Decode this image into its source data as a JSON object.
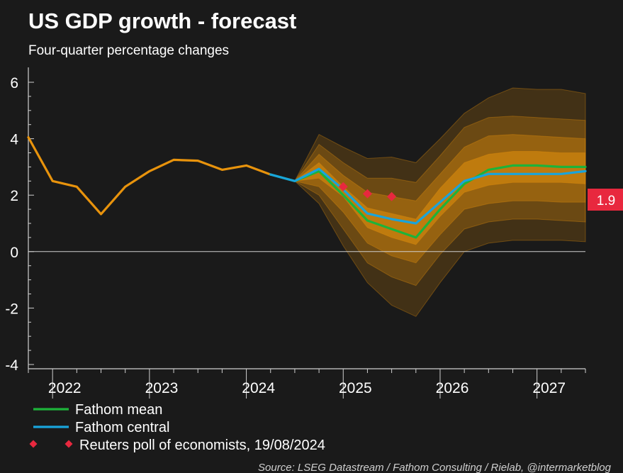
{
  "title": "US GDP growth - forecast",
  "subtitle": "Four-quarter percentage changes",
  "source": "Source: LSEG Datastream / Fathom Consulting / Rielab, @intermarketblog",
  "colors": {
    "background": "#1a1a1a",
    "history": "#e8930c",
    "fathom_mean": "#1db33a",
    "fathom_central": "#19a4db",
    "reuters_poll": "#e8283e",
    "fan": "#e8930c",
    "last_value_badge": "#e8283e"
  },
  "last_value_label": "1.9",
  "legend": [
    {
      "label": "Fathom mean",
      "marker": "line",
      "color": "#1db33a"
    },
    {
      "label": "Fathom central",
      "marker": "line",
      "color": "#19a4db"
    },
    {
      "label": "Reuters poll of economists, 19/08/2024",
      "marker": "diamond",
      "color": "#e8283e"
    }
  ],
  "chart_data": {
    "type": "line",
    "title": "US GDP growth - forecast",
    "subtitle": "Four-quarter percentage changes",
    "xlabel": "",
    "ylabel": "",
    "ylim": [
      -4,
      6
    ],
    "xlim": [
      2021.75,
      2027.5
    ],
    "ytick_labels": [
      "6",
      "4",
      "2",
      "0",
      "-2",
      "-4"
    ],
    "yticks": [
      6,
      4,
      2,
      0,
      -2,
      -4
    ],
    "year_labels": [
      "2022",
      "2023",
      "2024",
      "2025",
      "2026",
      "2027"
    ],
    "year_centers": [
      2022.125,
      2023.125,
      2024.125,
      2025.125,
      2026.125,
      2027.125
    ],
    "grid": false,
    "zero_line": true,
    "legend_position": "bottom-left",
    "series": [
      {
        "name": "History",
        "in_legend": false,
        "x": [
          2021.75,
          2022.0,
          2022.25,
          2022.5,
          2022.75,
          2023.0,
          2023.25,
          2023.5,
          2023.75,
          2024.0,
          2024.25
        ],
        "values": [
          4.05,
          2.5,
          2.3,
          1.33,
          2.3,
          2.85,
          3.25,
          3.22,
          2.9,
          3.05,
          2.73
        ]
      },
      {
        "name": "Fathom mean",
        "x": [
          2024.25,
          2024.5,
          2024.75,
          2025.0,
          2025.25,
          2025.5,
          2025.75,
          2026.0,
          2026.25,
          2026.5,
          2026.75,
          2027.0,
          2027.25,
          2027.5
        ],
        "values": [
          2.73,
          2.5,
          2.85,
          2.0,
          1.1,
          0.8,
          0.5,
          1.5,
          2.4,
          2.9,
          3.05,
          3.05,
          3.0,
          3.0
        ]
      },
      {
        "name": "Fathom central",
        "x": [
          2024.25,
          2024.5,
          2024.75,
          2025.0,
          2025.25,
          2025.5,
          2025.75,
          2026.0,
          2026.25,
          2026.5,
          2026.75,
          2027.0,
          2027.25,
          2027.5
        ],
        "values": [
          2.73,
          2.5,
          2.93,
          2.2,
          1.35,
          1.15,
          1.0,
          1.75,
          2.5,
          2.75,
          2.75,
          2.75,
          2.75,
          2.85
        ]
      }
    ],
    "reuters_poll": {
      "name": "Reuters poll of economists, 19/08/2024",
      "x": [
        2025.0,
        2025.25,
        2025.5
      ],
      "values": [
        2.3,
        2.05,
        1.95
      ]
    },
    "fan_chart": {
      "x": [
        2024.5,
        2024.75,
        2025.0,
        2025.25,
        2025.5,
        2025.75,
        2026.0,
        2026.25,
        2026.5,
        2026.75,
        2027.0,
        2027.25,
        2027.5
      ],
      "bands": [
        {
          "lower": [
            2.5,
            1.7,
            0.2,
            -1.1,
            -1.9,
            -2.3,
            -1.1,
            0.0,
            0.3,
            0.4,
            0.4,
            0.4,
            0.35
          ],
          "upper": [
            2.5,
            4.15,
            3.7,
            3.3,
            3.35,
            3.15,
            4.0,
            4.9,
            5.45,
            5.8,
            5.75,
            5.75,
            5.6
          ]
        },
        {
          "lower": [
            2.5,
            2.0,
            0.8,
            -0.4,
            -0.9,
            -1.2,
            -0.1,
            0.8,
            1.05,
            1.15,
            1.15,
            1.1,
            1.05
          ],
          "upper": [
            2.5,
            3.8,
            3.15,
            2.6,
            2.6,
            2.45,
            3.4,
            4.4,
            4.75,
            4.8,
            4.75,
            4.7,
            4.65
          ]
        },
        {
          "lower": [
            2.5,
            2.3,
            1.4,
            0.3,
            -0.15,
            -0.4,
            0.6,
            1.5,
            1.7,
            1.8,
            1.8,
            1.75,
            1.75
          ],
          "upper": [
            2.5,
            3.45,
            2.7,
            2.1,
            1.95,
            1.8,
            2.75,
            3.7,
            4.1,
            4.15,
            4.1,
            4.05,
            4.0
          ]
        },
        {
          "lower": [
            2.5,
            2.6,
            1.95,
            0.85,
            0.5,
            0.25,
            1.25,
            2.1,
            2.35,
            2.45,
            2.45,
            2.45,
            2.4
          ],
          "upper": [
            2.5,
            3.15,
            2.3,
            1.55,
            1.35,
            1.15,
            2.25,
            3.15,
            3.45,
            3.55,
            3.55,
            3.5,
            3.5
          ]
        }
      ]
    }
  }
}
